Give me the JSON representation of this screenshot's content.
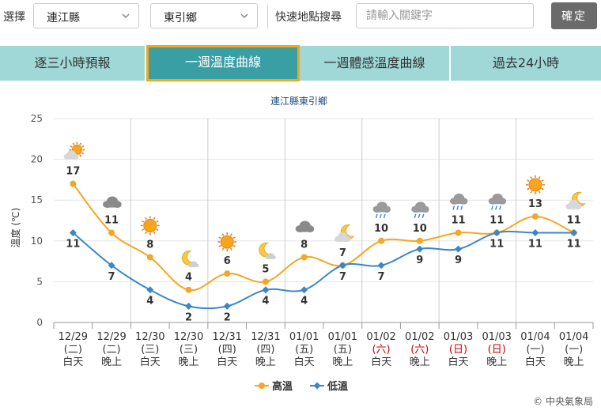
{
  "filters": {
    "select_label": "選擇",
    "county": "連江縣",
    "township": "東引鄉",
    "search_label": "快速地點搜尋",
    "search_placeholder": "請輸入關鍵字",
    "confirm": "確定"
  },
  "tabs": [
    {
      "label": "逐三小時預報",
      "active": false
    },
    {
      "label": "一週溫度曲線",
      "active": true
    },
    {
      "label": "一週體感溫度曲線",
      "active": false
    },
    {
      "label": "過去24小時",
      "active": false
    }
  ],
  "colors": {
    "high": "#f5a623",
    "low": "#3a87c8",
    "holiday": "#cc0000",
    "tab_bg": "#9fd8d6",
    "tab_active": "#3a9fa5",
    "tab_border": "#f0a81e"
  },
  "chart_data": {
    "type": "line",
    "title": "連江縣東引鄉",
    "ylabel": "溫度 (℃)",
    "ylim": [
      0,
      25
    ],
    "yticks": [
      0,
      5,
      10,
      15,
      20,
      25
    ],
    "categories": [
      {
        "date": "12/29",
        "weekday": "(二)",
        "period": "白天",
        "holiday": false,
        "icon": "partly-sunny-icon"
      },
      {
        "date": "12/29",
        "weekday": "(二)",
        "period": "晚上",
        "holiday": false,
        "icon": "cloudy-icon"
      },
      {
        "date": "12/30",
        "weekday": "(三)",
        "period": "白天",
        "holiday": false,
        "icon": "sunny-icon"
      },
      {
        "date": "12/30",
        "weekday": "(三)",
        "period": "晚上",
        "holiday": false,
        "icon": "moon-icon"
      },
      {
        "date": "12/31",
        "weekday": "(四)",
        "period": "白天",
        "holiday": false,
        "icon": "sunny-icon"
      },
      {
        "date": "12/31",
        "weekday": "(四)",
        "period": "晚上",
        "holiday": false,
        "icon": "moon-icon"
      },
      {
        "date": "01/01",
        "weekday": "(五)",
        "period": "白天",
        "holiday": false,
        "icon": "cloudy-icon"
      },
      {
        "date": "01/01",
        "weekday": "(五)",
        "period": "晚上",
        "holiday": false,
        "icon": "partly-cloudy-night-icon"
      },
      {
        "date": "01/02",
        "weekday": "(六)",
        "period": "白天",
        "holiday": true,
        "icon": "rain-icon"
      },
      {
        "date": "01/02",
        "weekday": "(六)",
        "period": "晚上",
        "holiday": true,
        "icon": "rain-icon"
      },
      {
        "date": "01/03",
        "weekday": "(日)",
        "period": "白天",
        "holiday": true,
        "icon": "rain-icon"
      },
      {
        "date": "01/03",
        "weekday": "(日)",
        "period": "晚上",
        "holiday": true,
        "icon": "rain-icon"
      },
      {
        "date": "01/04",
        "weekday": "(一)",
        "period": "白天",
        "holiday": false,
        "icon": "sunny-icon"
      },
      {
        "date": "01/04",
        "weekday": "(一)",
        "period": "晚上",
        "holiday": false,
        "icon": "partly-cloudy-night-icon"
      }
    ],
    "series": [
      {
        "name": "高溫",
        "values": [
          17,
          11,
          8,
          4,
          6,
          5,
          8,
          7,
          10,
          10,
          11,
          11,
          13,
          11
        ]
      },
      {
        "name": "低溫",
        "values": [
          11,
          7,
          4,
          2,
          2,
          4,
          4,
          7,
          7,
          9,
          9,
          11,
          11,
          11
        ]
      }
    ],
    "legend": "bottom-center"
  },
  "footer": {
    "copyright": "© 中央氣象局"
  }
}
